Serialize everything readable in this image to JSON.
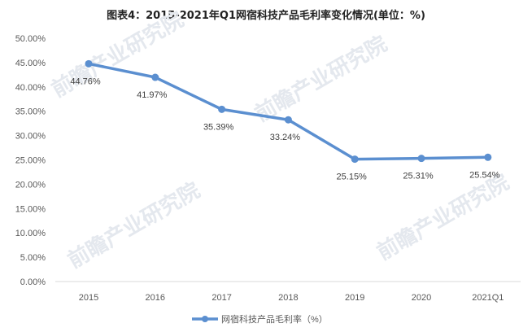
{
  "title": "图表4：2015-2021年Q1网宿科技产品毛利率变化情况(单位：%)",
  "watermark": "前瞻产业研究院",
  "colors": {
    "line": "#5b8fd0",
    "axis": "#d9d9d9",
    "text": "#595959"
  },
  "chart_data": {
    "type": "line",
    "title": "图表4：2015-2021年Q1网宿科技产品毛利率变化情况(单位：%)",
    "xlabel": "",
    "ylabel": "",
    "categories": [
      "2015",
      "2016",
      "2017",
      "2018",
      "2019",
      "2020",
      "2021Q1"
    ],
    "series": [
      {
        "name": "网宿科技产品毛利率（%）",
        "values": [
          44.76,
          41.97,
          35.39,
          33.24,
          25.15,
          25.31,
          25.54
        ]
      }
    ],
    "data_labels": [
      "44.76%",
      "41.97%",
      "35.39%",
      "33.24%",
      "25.15%",
      "25.31%",
      "25.54%"
    ],
    "yticks": [
      "0.00%",
      "5.00%",
      "10.00%",
      "15.00%",
      "20.00%",
      "25.00%",
      "30.00%",
      "35.00%",
      "40.00%",
      "45.00%",
      "50.00%"
    ],
    "ylim": [
      0,
      50
    ],
    "grid": false,
    "legend_position": "bottom"
  }
}
